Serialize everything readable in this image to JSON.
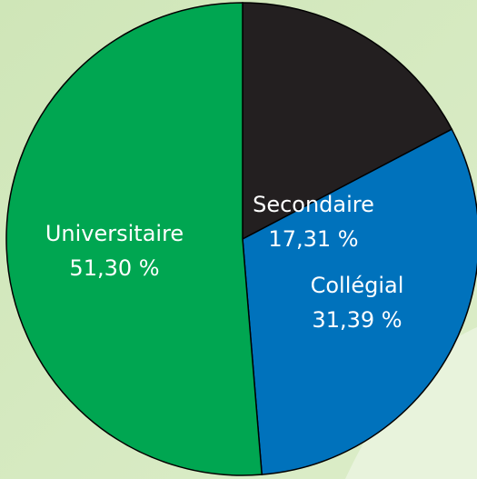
{
  "chart_data": {
    "type": "pie",
    "categories": [
      "Secondaire",
      "Collégial",
      "Universitaire"
    ],
    "values": [
      17.31,
      31.39,
      51.3
    ],
    "value_labels": [
      "17,31 %",
      "31,39 %",
      "51,30 %"
    ],
    "colors": [
      "#231f20",
      "#0072bc",
      "#00a651"
    ]
  }
}
